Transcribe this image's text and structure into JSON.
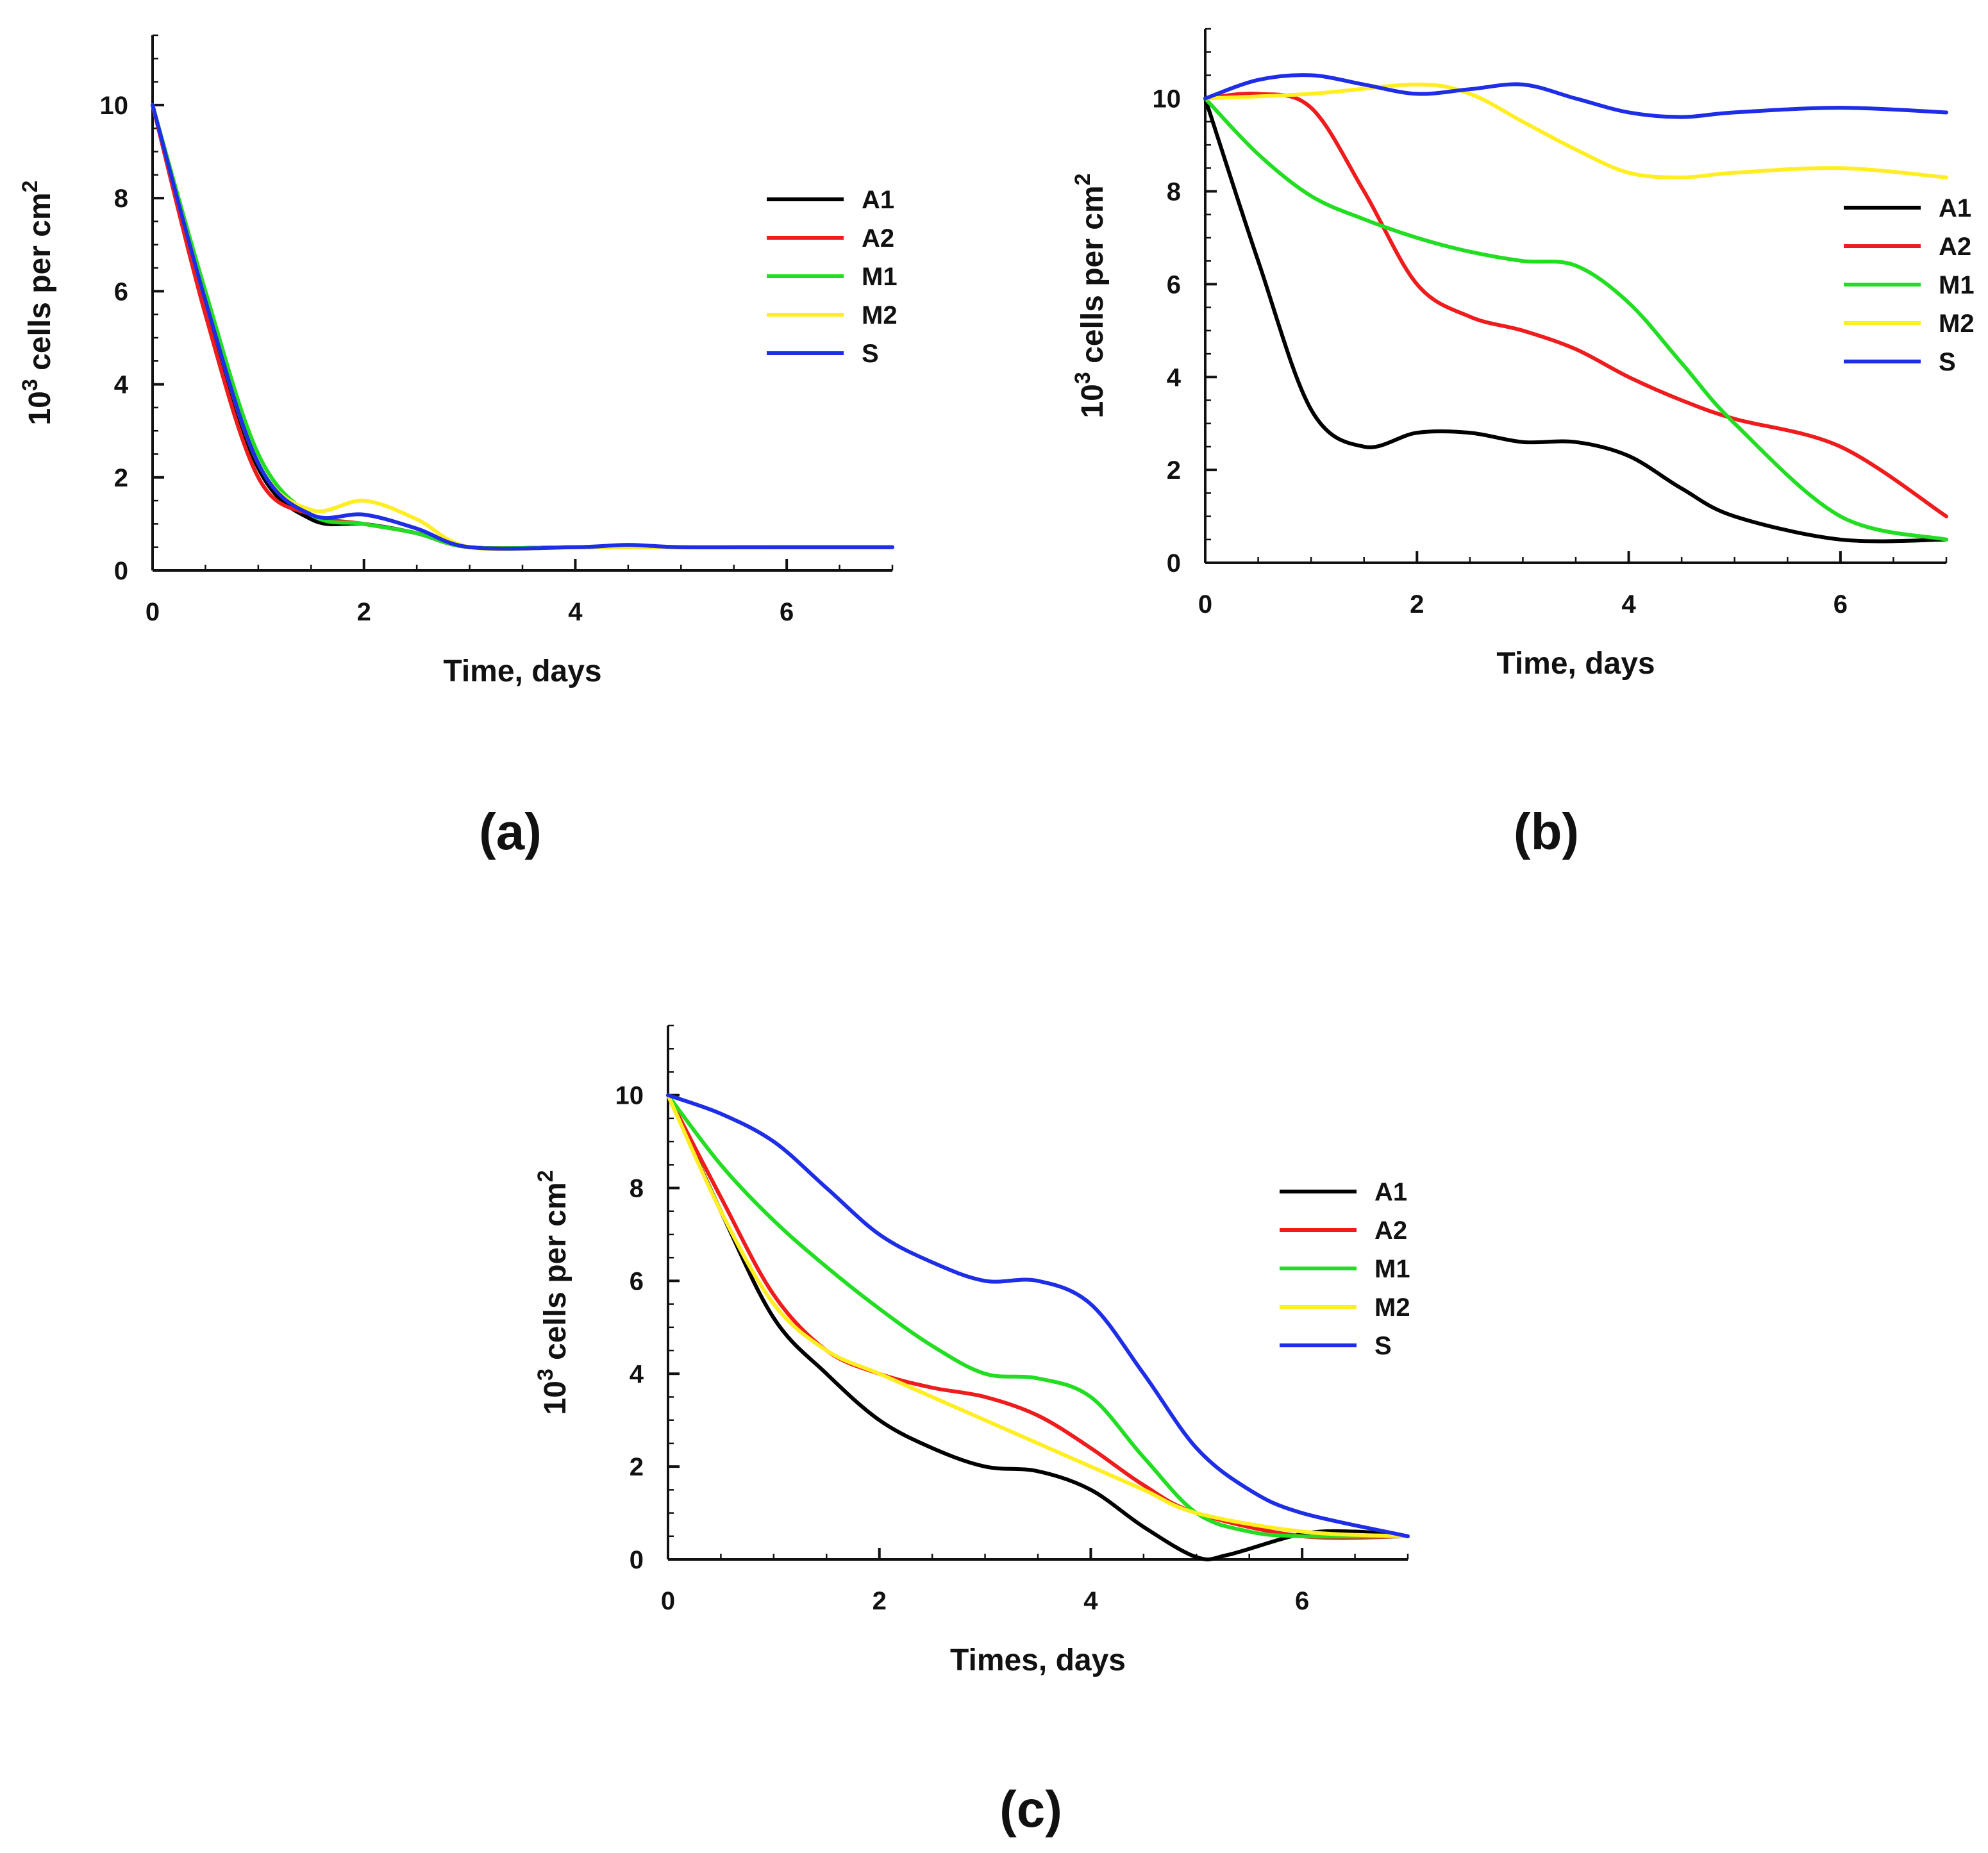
{
  "figure": {
    "panels": [
      {
        "id": "a",
        "caption": "(a)"
      },
      {
        "id": "b",
        "caption": "(b)"
      },
      {
        "id": "c",
        "caption": "(c)"
      }
    ]
  },
  "chart_data": [
    {
      "panel": "(a)",
      "type": "line",
      "title": "",
      "xlabel": "Time, days",
      "ylabel_base": "10",
      "ylabel_exp": "3",
      "ylabel_rest": " cells per cm",
      "ylabel_unit_exp": "2",
      "xlim": [
        0,
        7
      ],
      "ylim": [
        0,
        11.5
      ],
      "xticks": [
        0,
        2,
        4,
        6
      ],
      "yticks": [
        0,
        2,
        4,
        6,
        8,
        10
      ],
      "grid": false,
      "legend_position": "right",
      "series": [
        {
          "name": "A1",
          "color": "#000000",
          "points": [
            [
              0,
              10
            ],
            [
              0.5,
              5.6
            ],
            [
              1,
              2.2
            ],
            [
              1.5,
              1.1
            ],
            [
              2,
              1.0
            ],
            [
              2.5,
              0.8
            ],
            [
              3,
              0.5
            ],
            [
              4,
              0.5
            ],
            [
              5,
              0.5
            ],
            [
              6,
              0.5
            ],
            [
              7,
              0.5
            ]
          ]
        },
        {
          "name": "A2",
          "color": "#ee1c1c",
          "points": [
            [
              0,
              10
            ],
            [
              0.5,
              5.5
            ],
            [
              1,
              2.0
            ],
            [
              1.5,
              1.2
            ],
            [
              2,
              1.0
            ],
            [
              2.5,
              0.8
            ],
            [
              3,
              0.5
            ],
            [
              4,
              0.5
            ],
            [
              5,
              0.5
            ],
            [
              6,
              0.5
            ],
            [
              7,
              0.5
            ]
          ]
        },
        {
          "name": "M1",
          "color": "#22dd22",
          "points": [
            [
              0,
              10
            ],
            [
              0.5,
              6.0
            ],
            [
              1,
              2.5
            ],
            [
              1.5,
              1.2
            ],
            [
              2,
              1.0
            ],
            [
              2.5,
              0.8
            ],
            [
              3,
              0.5
            ],
            [
              4,
              0.5
            ],
            [
              5,
              0.5
            ],
            [
              6,
              0.5
            ],
            [
              7,
              0.5
            ]
          ]
        },
        {
          "name": "M2",
          "color": "#ffee22",
          "points": [
            [
              0,
              10
            ],
            [
              0.5,
              5.8
            ],
            [
              1,
              2.3
            ],
            [
              1.5,
              1.3
            ],
            [
              2,
              1.5
            ],
            [
              2.5,
              1.1
            ],
            [
              3,
              0.5
            ],
            [
              4,
              0.5
            ],
            [
              5,
              0.5
            ],
            [
              6,
              0.5
            ],
            [
              7,
              0.5
            ]
          ]
        },
        {
          "name": "S",
          "color": "#1e2de6",
          "points": [
            [
              0,
              10
            ],
            [
              0.5,
              5.8
            ],
            [
              1,
              2.3
            ],
            [
              1.5,
              1.2
            ],
            [
              2,
              1.2
            ],
            [
              2.5,
              0.9
            ],
            [
              3,
              0.5
            ],
            [
              4,
              0.5
            ],
            [
              4.5,
              0.55
            ],
            [
              5,
              0.5
            ],
            [
              6,
              0.5
            ],
            [
              7,
              0.5
            ]
          ]
        }
      ]
    },
    {
      "panel": "(b)",
      "type": "line",
      "title": "",
      "xlabel": "Time, days",
      "ylabel_base": "10",
      "ylabel_exp": "3",
      "ylabel_rest": " cells per cm",
      "ylabel_unit_exp": "2",
      "xlim": [
        0,
        7
      ],
      "ylim": [
        0,
        11.5
      ],
      "xticks": [
        0,
        2,
        4,
        6
      ],
      "yticks": [
        0,
        2,
        4,
        6,
        8,
        10
      ],
      "grid": false,
      "legend_position": "right",
      "series": [
        {
          "name": "A1",
          "color": "#000000",
          "points": [
            [
              0,
              10
            ],
            [
              0.5,
              6.5
            ],
            [
              1,
              3.3
            ],
            [
              1.5,
              2.5
            ],
            [
              2,
              2.8
            ],
            [
              2.5,
              2.8
            ],
            [
              3,
              2.6
            ],
            [
              3.5,
              2.6
            ],
            [
              4,
              2.3
            ],
            [
              4.5,
              1.6
            ],
            [
              5,
              1.0
            ],
            [
              6,
              0.5
            ],
            [
              7,
              0.5
            ]
          ]
        },
        {
          "name": "A2",
          "color": "#ee1c1c",
          "points": [
            [
              0,
              10
            ],
            [
              0.5,
              10.1
            ],
            [
              1,
              9.8
            ],
            [
              1.5,
              8.0
            ],
            [
              2,
              6.0
            ],
            [
              2.5,
              5.3
            ],
            [
              3,
              5.0
            ],
            [
              3.5,
              4.6
            ],
            [
              4,
              4.0
            ],
            [
              4.5,
              3.5
            ],
            [
              5,
              3.1
            ],
            [
              6,
              2.5
            ],
            [
              7,
              1.0
            ]
          ]
        },
        {
          "name": "M1",
          "color": "#22dd22",
          "points": [
            [
              0,
              10
            ],
            [
              0.5,
              8.8
            ],
            [
              1,
              7.9
            ],
            [
              1.5,
              7.4
            ],
            [
              2,
              7.0
            ],
            [
              2.5,
              6.7
            ],
            [
              3,
              6.5
            ],
            [
              3.5,
              6.4
            ],
            [
              4,
              5.6
            ],
            [
              4.5,
              4.3
            ],
            [
              5,
              3.0
            ],
            [
              6,
              1.0
            ],
            [
              7,
              0.5
            ]
          ]
        },
        {
          "name": "M2",
          "color": "#ffee22",
          "points": [
            [
              0,
              10
            ],
            [
              1,
              10.1
            ],
            [
              2,
              10.3
            ],
            [
              2.5,
              10.1
            ],
            [
              3,
              9.5
            ],
            [
              3.5,
              8.9
            ],
            [
              4,
              8.4
            ],
            [
              4.5,
              8.3
            ],
            [
              5,
              8.4
            ],
            [
              6,
              8.5
            ],
            [
              7,
              8.3
            ]
          ]
        },
        {
          "name": "S",
          "color": "#1e2de6",
          "points": [
            [
              0,
              10
            ],
            [
              0.5,
              10.4
            ],
            [
              1,
              10.5
            ],
            [
              1.5,
              10.3
            ],
            [
              2,
              10.1
            ],
            [
              2.5,
              10.2
            ],
            [
              3,
              10.3
            ],
            [
              3.5,
              10.0
            ],
            [
              4,
              9.7
            ],
            [
              4.5,
              9.6
            ],
            [
              5,
              9.7
            ],
            [
              6,
              9.8
            ],
            [
              7,
              9.7
            ]
          ]
        }
      ]
    },
    {
      "panel": "(c)",
      "type": "line",
      "title": "",
      "xlabel": "Times, days",
      "ylabel_base": "10",
      "ylabel_exp": "3",
      "ylabel_rest": " cells per cm",
      "ylabel_unit_exp": "2",
      "xlim": [
        0,
        7
      ],
      "ylim": [
        0,
        11.5
      ],
      "xticks": [
        0,
        2,
        4,
        6
      ],
      "yticks": [
        0,
        2,
        4,
        6,
        8,
        10
      ],
      "grid": false,
      "legend_position": "right",
      "series": [
        {
          "name": "A1",
          "color": "#000000",
          "points": [
            [
              0,
              10
            ],
            [
              0.5,
              7.5
            ],
            [
              1,
              5.2
            ],
            [
              1.5,
              4.0
            ],
            [
              2,
              3.0
            ],
            [
              2.5,
              2.4
            ],
            [
              3,
              2.0
            ],
            [
              3.5,
              1.9
            ],
            [
              4,
              1.5
            ],
            [
              4.5,
              0.7
            ],
            [
              5,
              0.05
            ],
            [
              5.3,
              0.1
            ],
            [
              6,
              0.55
            ],
            [
              6.5,
              0.6
            ],
            [
              7,
              0.5
            ]
          ]
        },
        {
          "name": "A2",
          "color": "#ee1c1c",
          "points": [
            [
              0,
              10
            ],
            [
              0.5,
              7.8
            ],
            [
              1,
              5.7
            ],
            [
              1.5,
              4.5
            ],
            [
              2,
              4.0
            ],
            [
              2.5,
              3.7
            ],
            [
              3,
              3.5
            ],
            [
              3.5,
              3.1
            ],
            [
              4,
              2.4
            ],
            [
              4.5,
              1.6
            ],
            [
              5,
              1.0
            ],
            [
              6,
              0.5
            ],
            [
              7,
              0.5
            ]
          ]
        },
        {
          "name": "M1",
          "color": "#22dd22",
          "points": [
            [
              0,
              10
            ],
            [
              0.5,
              8.5
            ],
            [
              1,
              7.3
            ],
            [
              1.5,
              6.3
            ],
            [
              2,
              5.4
            ],
            [
              2.5,
              4.6
            ],
            [
              3,
              4.0
            ],
            [
              3.5,
              3.9
            ],
            [
              4,
              3.5
            ],
            [
              4.5,
              2.2
            ],
            [
              5,
              1.0
            ],
            [
              5.5,
              0.6
            ],
            [
              6,
              0.5
            ],
            [
              7,
              0.5
            ]
          ]
        },
        {
          "name": "M2",
          "color": "#ffee22",
          "points": [
            [
              0,
              10
            ],
            [
              0.5,
              7.5
            ],
            [
              1,
              5.5
            ],
            [
              1.5,
              4.5
            ],
            [
              2,
              4.0
            ],
            [
              2.5,
              3.5
            ],
            [
              3,
              3.0
            ],
            [
              3.5,
              2.5
            ],
            [
              4,
              2.0
            ],
            [
              4.5,
              1.5
            ],
            [
              5,
              1.0
            ],
            [
              6,
              0.6
            ],
            [
              7,
              0.5
            ]
          ]
        },
        {
          "name": "S",
          "color": "#1e2de6",
          "points": [
            [
              0,
              10
            ],
            [
              0.5,
              9.6
            ],
            [
              1,
              9.0
            ],
            [
              1.5,
              8.0
            ],
            [
              2,
              7.0
            ],
            [
              2.5,
              6.4
            ],
            [
              3,
              6.0
            ],
            [
              3.5,
              6.0
            ],
            [
              4,
              5.5
            ],
            [
              4.5,
              4.0
            ],
            [
              5,
              2.4
            ],
            [
              5.5,
              1.5
            ],
            [
              6,
              1.0
            ],
            [
              7,
              0.5
            ]
          ]
        }
      ]
    }
  ]
}
